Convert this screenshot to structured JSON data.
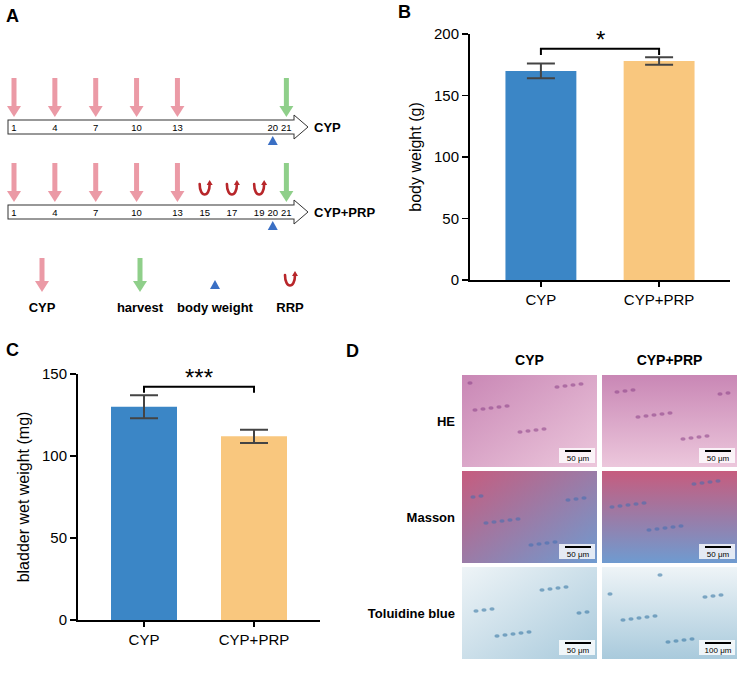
{
  "timeline": {
    "panel_label": "A",
    "day_range": [
      1,
      22
    ],
    "rows": [
      {
        "label": "CYP",
        "cyp_days": [
          1,
          4,
          7,
          10,
          13
        ],
        "prp_days": [],
        "body_weight_day": 20,
        "harvest_day": 21
      },
      {
        "label": "CYP+PRP",
        "cyp_days": [
          1,
          4,
          7,
          10,
          13
        ],
        "prp_days": [
          15,
          17,
          19
        ],
        "body_weight_day": 20,
        "harvest_day": 21
      }
    ],
    "legend": [
      {
        "label": "CYP",
        "marker": "cyp"
      },
      {
        "label": "harvest",
        "marker": "harvest"
      },
      {
        "label": "body weight",
        "marker": "body_weight"
      },
      {
        "label": "RRP",
        "marker": "prp"
      }
    ]
  },
  "chart_data": [
    {
      "panel_label": "B",
      "type": "bar",
      "y_label": "body weight (g)",
      "categories": [
        "CYP",
        "CYP+PRP"
      ],
      "values": [
        170,
        178
      ],
      "errors": [
        6,
        3
      ],
      "colors": [
        "#3b86c6",
        "#f9c77e"
      ],
      "ylim": [
        0,
        200
      ],
      "yticks": [
        0,
        50,
        100,
        150,
        200
      ],
      "grid": false,
      "significance": {
        "text": "*",
        "between": [
          "CYP",
          "CYP+PRP"
        ]
      }
    },
    {
      "panel_label": "C",
      "type": "bar",
      "y_label": "bladder wet weight (mg)",
      "categories": [
        "CYP",
        "CYP+PRP"
      ],
      "values": [
        130,
        112
      ],
      "errors": [
        7,
        4
      ],
      "colors": [
        "#3b86c6",
        "#f9c77e"
      ],
      "ylim": [
        0,
        150
      ],
      "yticks": [
        0,
        50,
        100,
        150
      ],
      "grid": false,
      "significance": {
        "text": "***",
        "between": [
          "CYP",
          "CYP+PRP"
        ]
      }
    }
  ],
  "histology": {
    "panel_label": "D",
    "columns": [
      "CYP",
      "CYP+PRP"
    ],
    "rows": [
      {
        "label": "HE",
        "scale_bars": [
          "50 μm",
          "50 μm"
        ]
      },
      {
        "label": "Masson",
        "scale_bars": [
          "50 μm",
          "50 μm"
        ]
      },
      {
        "label": "Toluidine blue",
        "scale_bars": [
          "50 μm",
          "100 μm"
        ]
      }
    ]
  }
}
